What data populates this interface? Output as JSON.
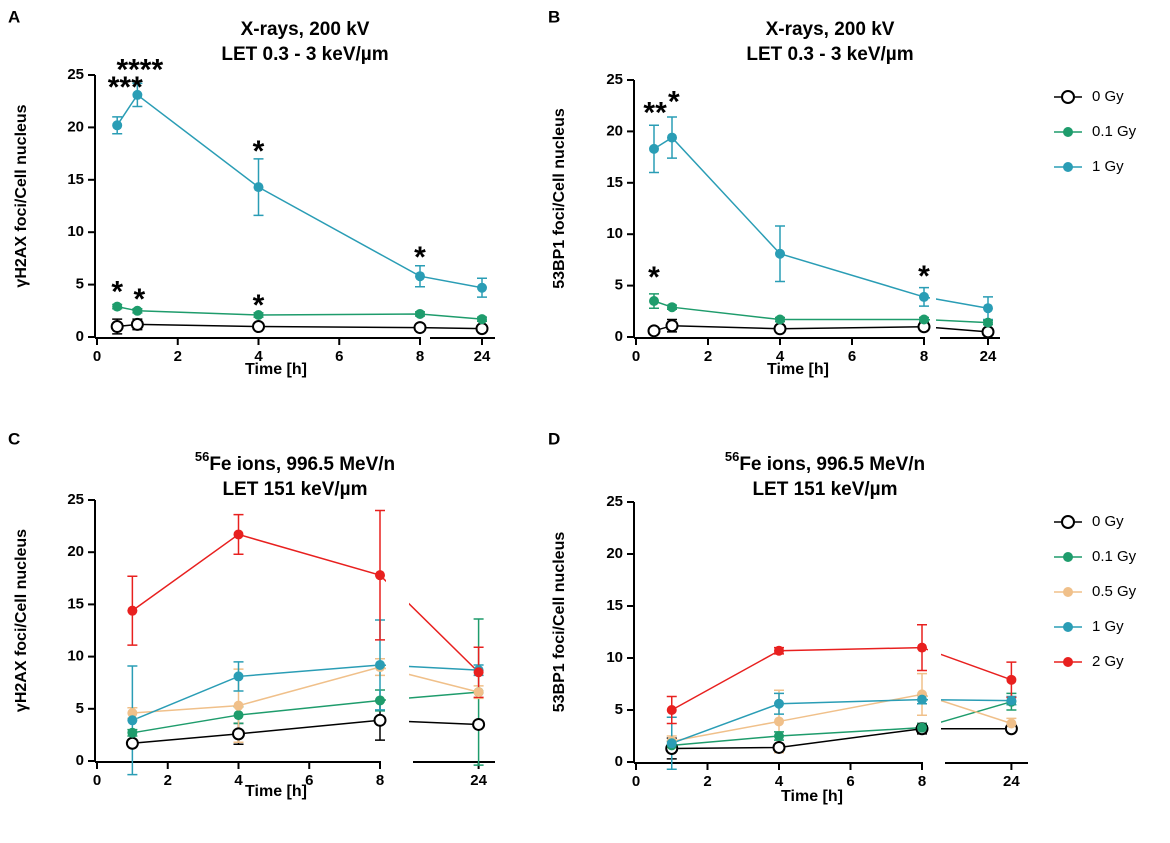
{
  "chart_data": [
    {
      "panel": "A",
      "type": "line",
      "title": [
        "X-rays, 200 kV",
        "LET 0.3 - 3 keV/µm"
      ],
      "xlabel": "Time [h]",
      "ylabel": "γH2AX foci/Cell nucleus",
      "x": [
        0.5,
        1,
        4,
        8,
        24
      ],
      "xlim": [
        0,
        8
      ],
      "x2lim": [
        20,
        25
      ],
      "xticks": [
        0,
        2,
        4,
        6,
        8
      ],
      "x2ticks": [
        24
      ],
      "ylim": [
        0,
        25
      ],
      "yticks": [
        0,
        5,
        10,
        15,
        20,
        25
      ],
      "legend": false,
      "series": [
        {
          "name": "0 Gy",
          "color": "#000000",
          "marker": "open",
          "values": [
            1.0,
            1.2,
            1.0,
            0.9,
            0.8
          ],
          "errors": [
            0.7,
            0.5,
            0.2,
            0.2,
            0.2
          ]
        },
        {
          "name": "0.1 Gy",
          "color": "#1e9c6c",
          "marker": "filled",
          "values": [
            2.9,
            2.5,
            2.1,
            2.2,
            1.7
          ],
          "errors": [
            0.2,
            0.2,
            0.2,
            0.2,
            0.2
          ]
        },
        {
          "name": "1 Gy",
          "color": "#2a9db5",
          "marker": "filled",
          "values": [
            20.2,
            23.1,
            14.3,
            5.8,
            4.7
          ],
          "errors": [
            0.8,
            1.1,
            2.7,
            1.0,
            0.9
          ]
        }
      ],
      "annotations": [
        "****",
        "***",
        "*",
        "*",
        "*",
        "*",
        "*"
      ]
    },
    {
      "panel": "B",
      "type": "line",
      "title": [
        "X-rays, 200 kV",
        "LET 0.3 - 3 keV/µm"
      ],
      "xlabel": "Time [h]",
      "ylabel": "53BP1 foci/Cell nucleus",
      "x": [
        0.5,
        1,
        4,
        8,
        24
      ],
      "xlim": [
        0,
        8
      ],
      "x2lim": [
        20,
        25
      ],
      "xticks": [
        0,
        2,
        4,
        6,
        8
      ],
      "x2ticks": [
        24
      ],
      "ylim": [
        0,
        25
      ],
      "yticks": [
        0,
        5,
        10,
        15,
        20,
        25
      ],
      "legend": true,
      "series": [
        {
          "name": "0 Gy",
          "color": "#000000",
          "marker": "open",
          "values": [
            0.6,
            1.1,
            0.8,
            1.0,
            0.5
          ],
          "errors": [
            0.2,
            0.6,
            0.2,
            0.3,
            0.2
          ]
        },
        {
          "name": "0.1 Gy",
          "color": "#1e9c6c",
          "marker": "filled",
          "values": [
            3.5,
            2.9,
            1.7,
            1.7,
            1.4
          ],
          "errors": [
            0.7,
            0.2,
            0.2,
            0.2,
            0.2
          ]
        },
        {
          "name": "1 Gy",
          "color": "#2a9db5",
          "marker": "filled",
          "values": [
            18.3,
            19.4,
            8.1,
            3.9,
            2.8
          ],
          "errors": [
            2.3,
            2.0,
            2.7,
            0.9,
            1.1
          ]
        }
      ],
      "annotations": [
        "**",
        "*",
        "*",
        "*"
      ]
    },
    {
      "panel": "C",
      "type": "line",
      "title_superscript": "56",
      "title": [
        "Fe ions, 996.5 MeV/n",
        "LET 151 keV/µm"
      ],
      "xlabel": "Time [h]",
      "ylabel": "γH2AX foci/Cell nucleus",
      "x": [
        1,
        4,
        8,
        24
      ],
      "xlim": [
        0,
        8
      ],
      "x2lim": [
        20,
        25
      ],
      "xticks": [
        0,
        2,
        4,
        6,
        8
      ],
      "x2ticks": [
        24
      ],
      "ylim": [
        0,
        25
      ],
      "yticks": [
        0,
        5,
        10,
        15,
        20,
        25
      ],
      "legend": false,
      "series": [
        {
          "name": "0 Gy",
          "color": "#000000",
          "marker": "open",
          "values": [
            1.7,
            2.6,
            3.9,
            3.5
          ],
          "errors": [
            0.3,
            1.0,
            1.9,
            0.3
          ]
        },
        {
          "name": "0.1 Gy",
          "color": "#1e9c6c",
          "marker": "filled",
          "values": [
            2.7,
            4.4,
            5.8,
            6.6
          ],
          "errors": [
            0.3,
            0.8,
            1.0,
            7.0
          ]
        },
        {
          "name": "0.5 Gy",
          "color": "#f0c08a",
          "marker": "filled",
          "values": [
            4.6,
            5.3,
            9.0,
            6.6
          ],
          "errors": [
            0.5,
            3.5,
            0.8,
            0.6
          ]
        },
        {
          "name": "1 Gy",
          "color": "#2a9db5",
          "marker": "filled",
          "values": [
            3.9,
            8.1,
            9.2,
            8.7
          ],
          "errors": [
            5.2,
            1.4,
            4.3,
            0.5
          ]
        },
        {
          "name": "2 Gy",
          "color": "#e8201f",
          "marker": "filled",
          "values": [
            14.4,
            21.7,
            17.8,
            8.5
          ],
          "errors": [
            3.3,
            1.9,
            6.2,
            2.4
          ]
        }
      ]
    },
    {
      "panel": "D",
      "type": "line",
      "title_superscript": "56",
      "title": [
        "Fe ions, 996.5 MeV/n",
        "LET 151 keV/µm"
      ],
      "xlabel": "Time [h]",
      "ylabel": "53BP1 foci/Cell nucleus",
      "x": [
        1,
        4,
        8,
        24
      ],
      "xlim": [
        0,
        8
      ],
      "x2lim": [
        20,
        25
      ],
      "xticks": [
        0,
        2,
        4,
        6,
        8
      ],
      "x2ticks": [
        24
      ],
      "ylim": [
        0,
        25
      ],
      "yticks": [
        0,
        5,
        10,
        15,
        20,
        25
      ],
      "legend": true,
      "series": [
        {
          "name": "0 Gy",
          "color": "#000000",
          "marker": "open",
          "values": [
            1.3,
            1.4,
            3.2,
            3.2
          ],
          "errors": [
            1.0,
            0.3,
            0.5,
            0.3
          ]
        },
        {
          "name": "0.1 Gy",
          "color": "#1e9c6c",
          "marker": "filled",
          "values": [
            1.6,
            2.5,
            3.3,
            5.8
          ],
          "errors": [
            0.4,
            0.4,
            0.4,
            0.8
          ]
        },
        {
          "name": "0.5 Gy",
          "color": "#f0c08a",
          "marker": "filled",
          "values": [
            2.0,
            3.9,
            6.5,
            3.7
          ],
          "errors": [
            0.5,
            3.0,
            2.0,
            0.5
          ]
        },
        {
          "name": "1 Gy",
          "color": "#2a9db5",
          "marker": "filled",
          "values": [
            1.8,
            5.6,
            6.0,
            5.9
          ],
          "errors": [
            2.5,
            1.0,
            0.4,
            0.4
          ]
        },
        {
          "name": "2 Gy",
          "color": "#e8201f",
          "marker": "filled",
          "values": [
            5.0,
            10.7,
            11.0,
            7.9
          ],
          "errors": [
            1.3,
            0.3,
            2.2,
            1.7
          ]
        }
      ]
    }
  ]
}
